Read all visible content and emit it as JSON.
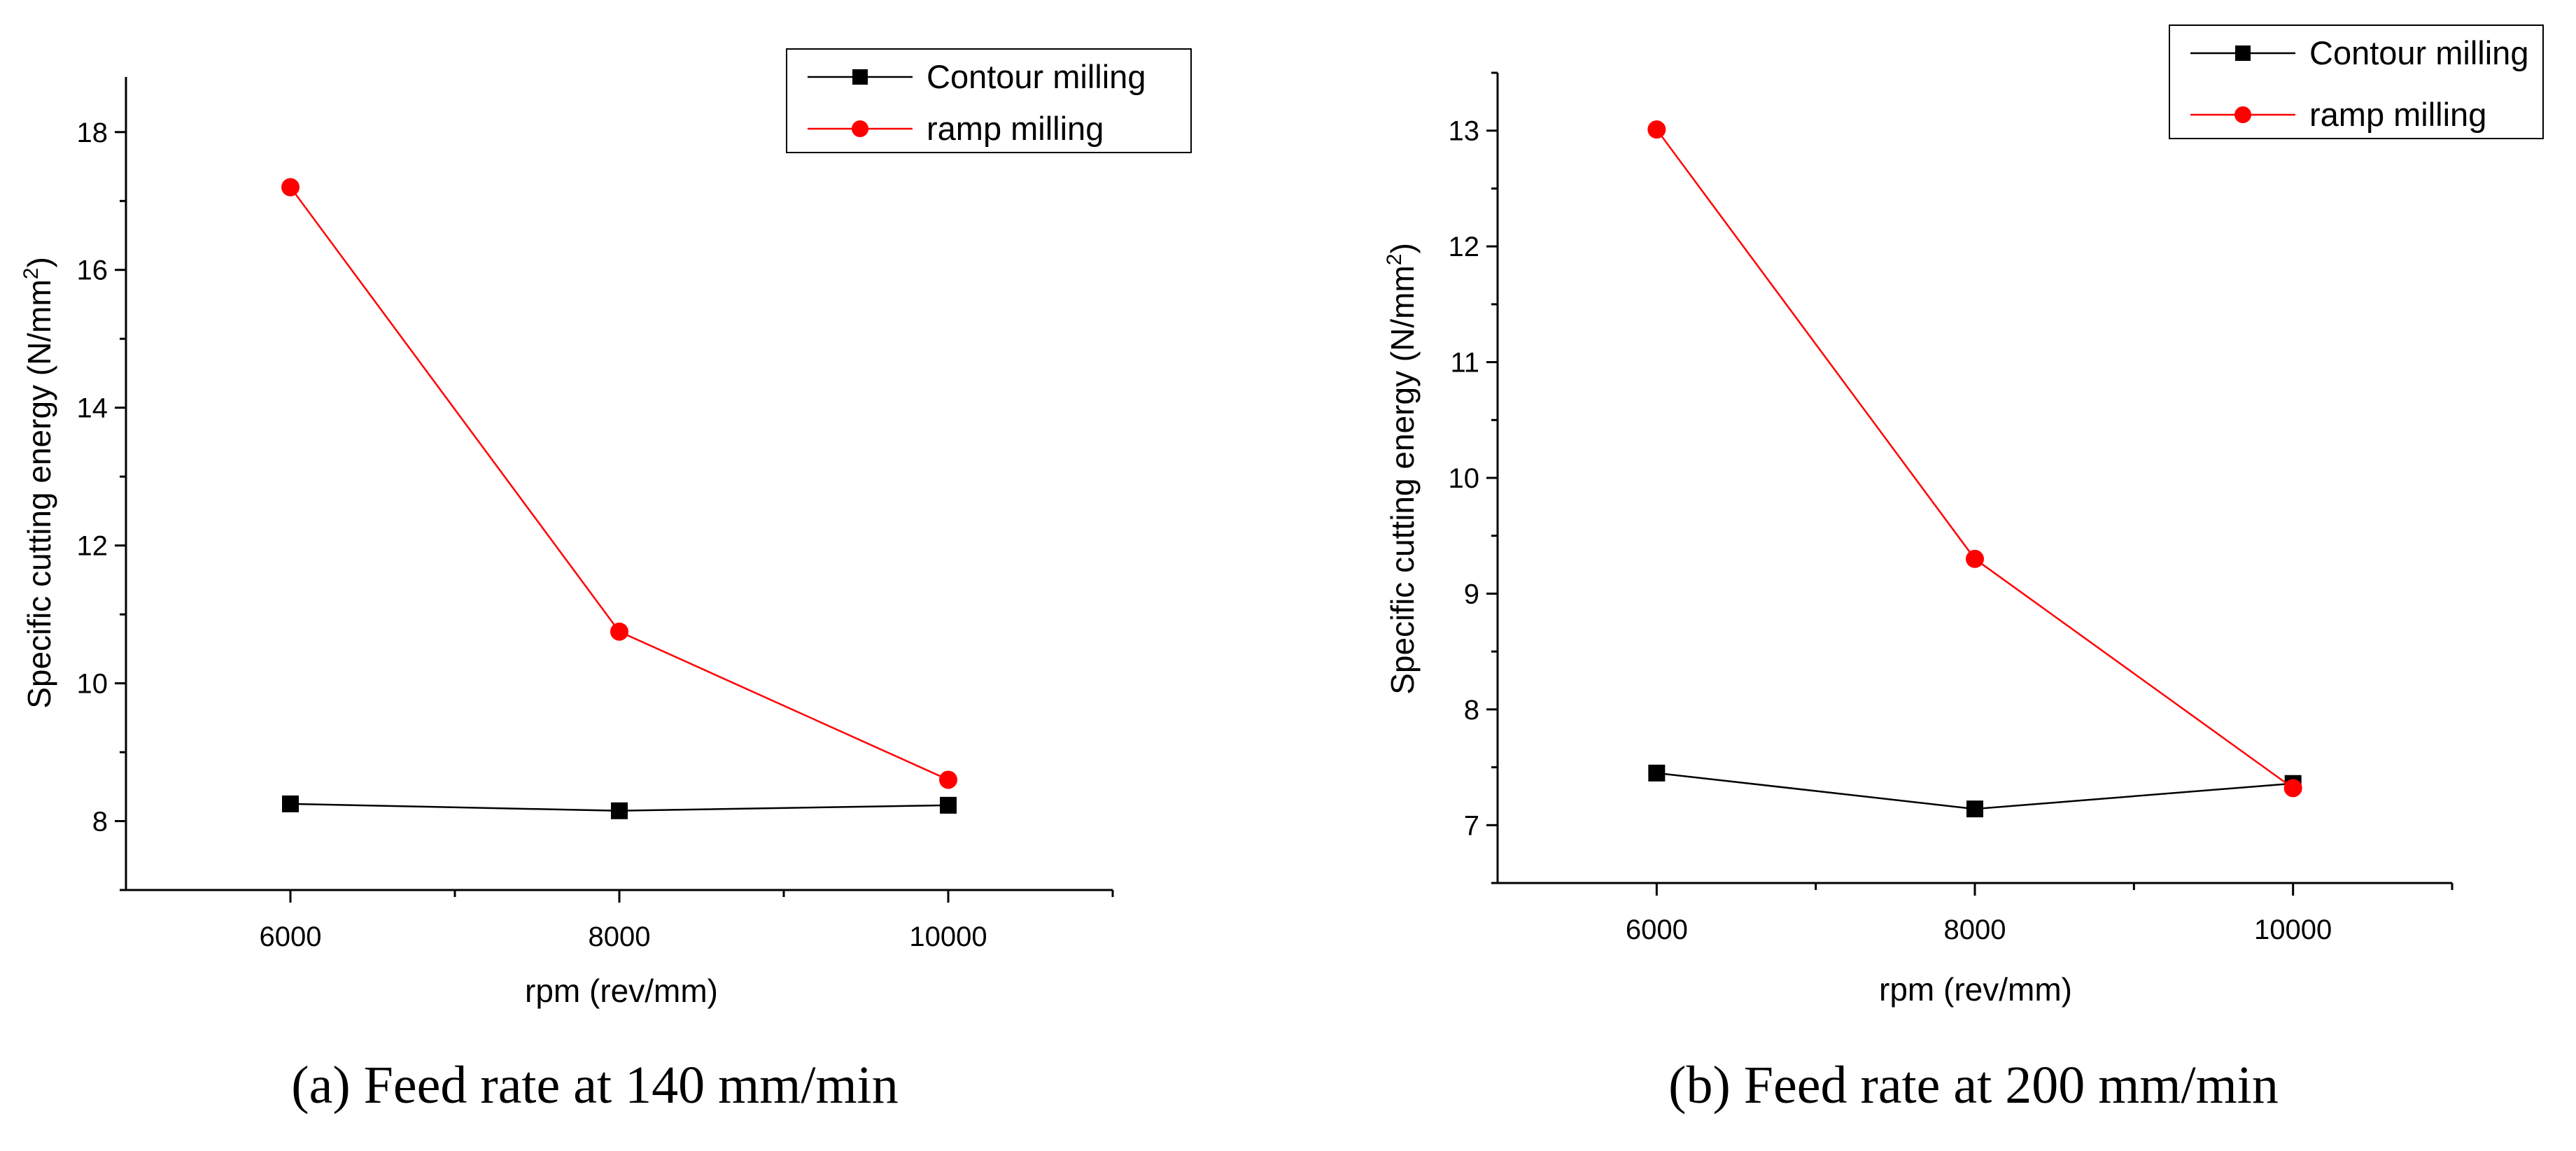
{
  "figure": {
    "captions": [
      "(a) Feed rate at 140 mm/min",
      "(b) Feed rate at 200 mm/min"
    ]
  },
  "chart_data": [
    {
      "type": "line",
      "title": "",
      "caption": "(a) Feed rate at 140 mm/min",
      "x": [
        6000,
        8000,
        10000
      ],
      "xlim": [
        5000,
        11000
      ],
      "xticks": [
        6000,
        7000,
        8000,
        9000,
        10000,
        11000
      ],
      "xticklabels": [
        "6000",
        "8000",
        "10000"
      ],
      "ylim": [
        7,
        18.8
      ],
      "yticks": [
        7,
        8,
        9,
        10,
        11,
        12,
        13,
        14,
        15,
        16,
        17,
        18
      ],
      "yticklabels": [
        "8",
        "10",
        "12",
        "14",
        "16",
        "18"
      ],
      "xlabel": "rpm (rev/mm)",
      "ylabel": "Specific cutting energy (N/mm",
      "ylabel_superscript": "2",
      "ylabel_suffix": ")",
      "legend_position": "top-right",
      "series": [
        {
          "name": "Contour milling",
          "marker": "square",
          "color": "#000000",
          "values": [
            8.25,
            8.15,
            8.23
          ]
        },
        {
          "name": "ramp milling",
          "marker": "circle",
          "color": "#ff0000",
          "values": [
            17.2,
            10.75,
            8.6
          ]
        }
      ]
    },
    {
      "type": "line",
      "title": "",
      "caption": "(b) Feed rate at 200 mm/min",
      "x": [
        6000,
        8000,
        10000
      ],
      "xlim": [
        5000,
        11000
      ],
      "xticks": [
        6000,
        7000,
        8000,
        9000,
        10000,
        11000
      ],
      "xticklabels": [
        "6000",
        "8000",
        "10000"
      ],
      "ylim": [
        6.5,
        13.5
      ],
      "yticks": [
        6.5,
        7,
        7.5,
        8,
        8.5,
        9,
        9.5,
        10,
        10.5,
        11,
        11.5,
        12,
        12.5,
        13,
        13.5
      ],
      "yticklabels": [
        "7",
        "8",
        "9",
        "10",
        "11",
        "12",
        "13"
      ],
      "xlabel": "rpm (rev/mm)",
      "ylabel": "Specific cutting energy (N/mm",
      "ylabel_superscript": "2",
      "ylabel_suffix": ")",
      "legend_position": "top-right",
      "series": [
        {
          "name": "Contour milling",
          "marker": "square",
          "color": "#000000",
          "values": [
            7.45,
            7.14,
            7.36
          ]
        },
        {
          "name": "ramp milling",
          "marker": "circle",
          "color": "#ff0000",
          "values": [
            13.01,
            9.3,
            7.32
          ]
        }
      ]
    }
  ]
}
